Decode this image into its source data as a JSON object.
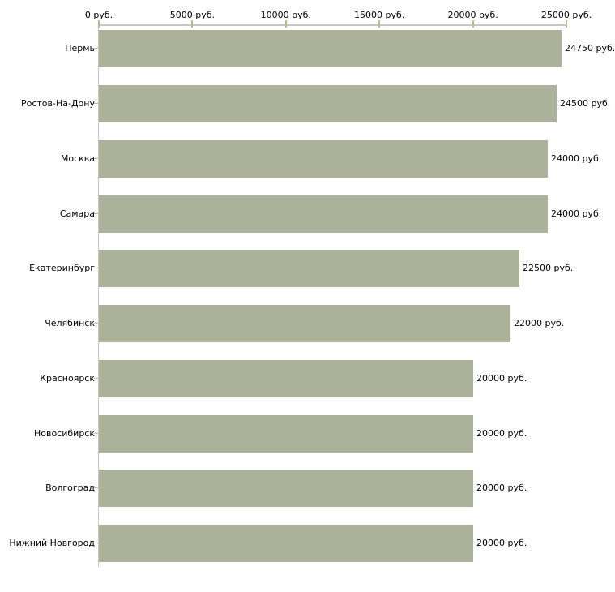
{
  "chart_data": {
    "type": "bar",
    "orientation": "horizontal",
    "title": "",
    "unit": "руб.",
    "categories": [
      "Пермь",
      "Ростов-На-Дону",
      "Москва",
      "Самара",
      "Екатеринбург",
      "Челябинск",
      "Красноярск",
      "Новосибирск",
      "Волгоград",
      "Нижний Новгород"
    ],
    "values": [
      24750,
      24500,
      24000,
      24000,
      22500,
      22000,
      20000,
      20000,
      20000,
      20000
    ],
    "value_labels": [
      "24750 руб.",
      "24500 руб.",
      "24000 руб.",
      "24000 руб.",
      "22500 руб.",
      "22000 руб.",
      "20000 руб.",
      "20000 руб.",
      "20000 руб.",
      "20000 руб."
    ],
    "x_axis": {
      "position": "top",
      "range": [
        0,
        25000
      ],
      "ticks": [
        0,
        5000,
        10000,
        15000,
        20000,
        25000
      ],
      "tick_labels": [
        "0 руб.",
        "5000 руб.",
        "10000 руб.",
        "15000 руб.",
        "20000 руб.",
        "25000 руб."
      ]
    },
    "legend": null,
    "grid": false,
    "colors": {
      "bar": "#abb299",
      "axis_line": "#c6c6c6",
      "tick_mark": "#beb88b",
      "text": "#000000",
      "background": "#ffffff"
    }
  }
}
